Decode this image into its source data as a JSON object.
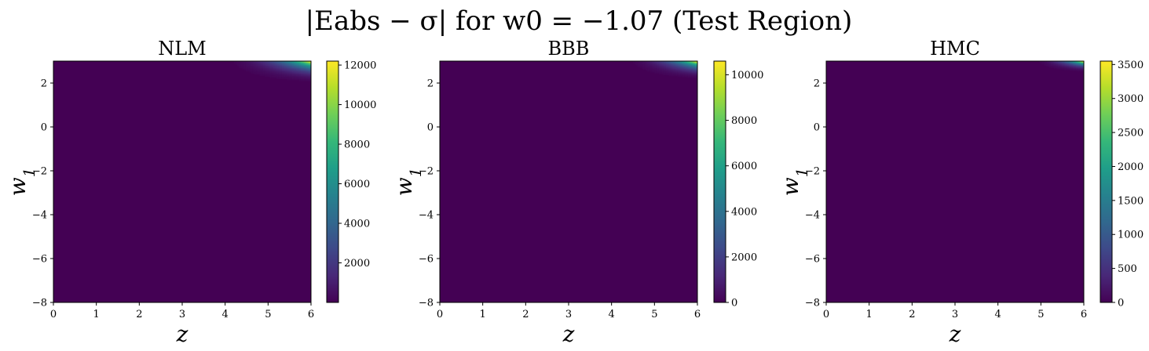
{
  "figure": {
    "title": "|E_abs − σ| for w_0 = −1.07 (Test Region)"
  },
  "chart_data": [
    {
      "type": "heatmap",
      "title": "NLM",
      "xlabel": "z",
      "ylabel": "w_1",
      "xlim": [
        0,
        6
      ],
      "ylim": [
        -8,
        3
      ],
      "xticks": [
        0,
        1,
        2,
        3,
        4,
        5,
        6
      ],
      "yticks": [
        -8,
        -6,
        -4,
        -2,
        0,
        2
      ],
      "colormap": "viridis",
      "colorbar": {
        "min": 0,
        "max": 12200,
        "ticks": [
          2000,
          4000,
          6000,
          8000,
          10000,
          12000
        ]
      },
      "background_value": 0,
      "hotspot": {
        "corner": "top-right",
        "peak_value": 12200,
        "z_start": 3.6,
        "w1_start": 1.8
      }
    },
    {
      "type": "heatmap",
      "title": "BBB",
      "xlabel": "z",
      "ylabel": "w_1",
      "xlim": [
        0,
        6
      ],
      "ylim": [
        -8,
        3
      ],
      "xticks": [
        0,
        1,
        2,
        3,
        4,
        5,
        6
      ],
      "yticks": [
        -8,
        -6,
        -4,
        -2,
        0,
        2
      ],
      "colormap": "viridis",
      "colorbar": {
        "min": 0,
        "max": 10600,
        "ticks": [
          0,
          2000,
          4000,
          6000,
          8000,
          10000
        ]
      },
      "background_value": 0,
      "hotspot": {
        "corner": "top-right",
        "peak_value": 10600,
        "z_start": 4.0,
        "w1_start": 2.0
      }
    },
    {
      "type": "heatmap",
      "title": "HMC",
      "xlabel": "z",
      "ylabel": "w_1",
      "xlim": [
        0,
        6
      ],
      "ylim": [
        -8,
        3
      ],
      "xticks": [
        0,
        1,
        2,
        3,
        4,
        5,
        6
      ],
      "yticks": [
        -8,
        -6,
        -4,
        -2,
        0,
        2
      ],
      "colormap": "viridis",
      "colorbar": {
        "min": 0,
        "max": 3550,
        "ticks": [
          0,
          500,
          1000,
          1500,
          2000,
          2500,
          3000,
          3500
        ]
      },
      "background_value": 0,
      "hotspot": {
        "corner": "top-right",
        "peak_value": 3550,
        "z_start": 4.6,
        "w1_start": 2.4
      }
    }
  ]
}
